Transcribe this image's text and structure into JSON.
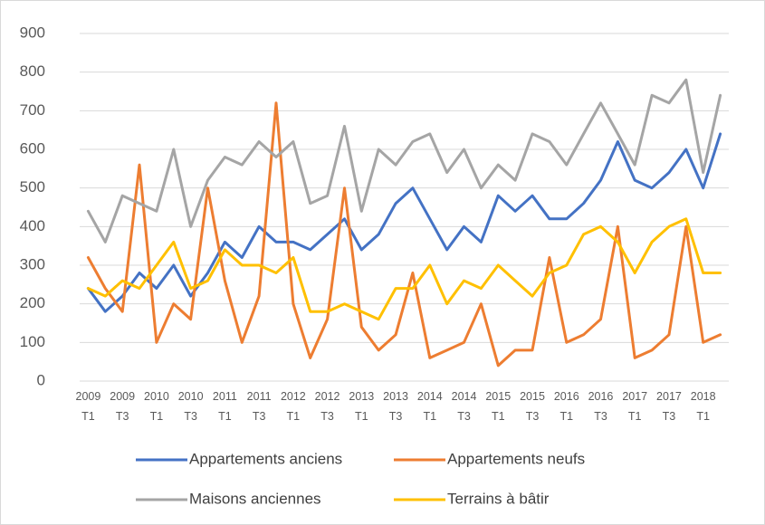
{
  "chart_data": {
    "type": "line",
    "categories": [
      "2009 T1",
      null,
      "2009 T3",
      null,
      "2010 T1",
      null,
      "2010 T3",
      null,
      "2011 T1",
      null,
      "2011 T3",
      null,
      "2012 T1",
      null,
      "2012 T3",
      null,
      "2013 T1",
      null,
      "2013 T3",
      null,
      "2014 T1",
      null,
      "2014 T3",
      null,
      "2015 T1",
      null,
      "2015 T3",
      null,
      "2016 T1",
      null,
      "2016 T3",
      null,
      "2017 T1",
      null,
      "2017 T3",
      null,
      "2018 T1",
      null
    ],
    "series": [
      {
        "name": "Appartements anciens",
        "color": "#4472c4",
        "values": [
          240,
          180,
          220,
          280,
          240,
          300,
          220,
          280,
          360,
          320,
          400,
          360,
          360,
          340,
          380,
          420,
          340,
          380,
          460,
          500,
          420,
          340,
          400,
          360,
          480,
          440,
          480,
          420,
          420,
          460,
          520,
          620,
          520,
          500,
          540,
          600,
          500,
          640
        ]
      },
      {
        "name": "Appartements neufs",
        "color": "#ed7d31",
        "values": [
          320,
          240,
          180,
          560,
          100,
          200,
          160,
          500,
          260,
          100,
          220,
          720,
          200,
          60,
          160,
          500,
          140,
          80,
          120,
          280,
          60,
          80,
          100,
          200,
          40,
          80,
          80,
          320,
          100,
          120,
          160,
          400,
          60,
          80,
          120,
          400,
          100,
          120
        ]
      },
      {
        "name": "Maisons anciennes",
        "color": "#a5a5a5",
        "values": [
          440,
          360,
          480,
          460,
          440,
          600,
          400,
          520,
          580,
          560,
          620,
          580,
          620,
          460,
          480,
          660,
          440,
          600,
          560,
          620,
          640,
          540,
          600,
          500,
          560,
          520,
          640,
          620,
          560,
          640,
          720,
          640,
          560,
          740,
          720,
          780,
          540,
          740
        ]
      },
      {
        "name": "Terrains à bâtir",
        "color": "#ffc000",
        "values": [
          240,
          220,
          260,
          240,
          300,
          360,
          240,
          260,
          340,
          300,
          300,
          280,
          320,
          180,
          180,
          200,
          180,
          160,
          240,
          240,
          300,
          200,
          260,
          240,
          300,
          260,
          220,
          280,
          300,
          380,
          400,
          360,
          280,
          360,
          400,
          420,
          280,
          280
        ]
      }
    ],
    "ylim": [
      0,
      900
    ],
    "yticks": [
      0,
      100,
      200,
      300,
      400,
      500,
      600,
      700,
      800,
      900
    ],
    "grid": true
  }
}
